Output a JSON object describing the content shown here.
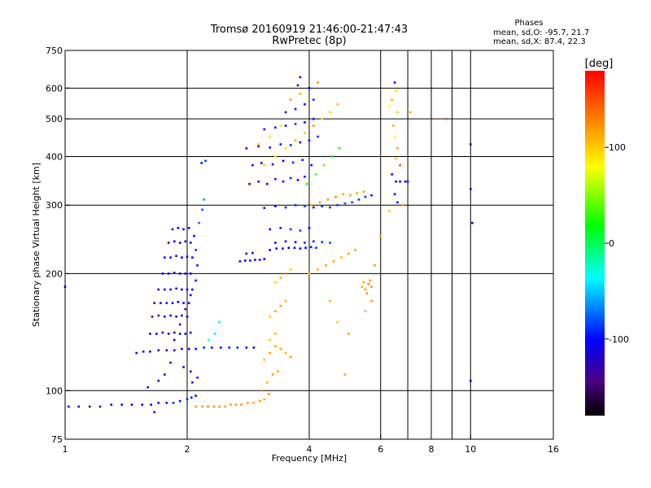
{
  "chart_data": {
    "type": "scatter",
    "title": "Tromsø 20160919 21:46:00-21:47:43",
    "subtitle": "RwPretec (8p)",
    "xlabel": "Frequency [MHz]",
    "ylabel": "Stationary phase Virtual Height [km]",
    "x_scale": "log",
    "y_scale": "log",
    "xlim": [
      1,
      16
    ],
    "ylim": [
      75,
      750
    ],
    "x_ticks": [
      1,
      2,
      4,
      6,
      8,
      10,
      16
    ],
    "y_ticks": [
      75,
      100,
      200,
      300,
      400,
      500,
      600,
      750
    ],
    "grid_x": [
      2,
      4,
      6,
      7,
      8,
      9,
      10
    ],
    "grid_y": [
      100,
      200,
      300,
      400,
      500,
      600
    ],
    "stats": {
      "header": "Phases",
      "line_o": "mean, sd,O: -95.7, 21.7",
      "line_x": "mean, sd,X:  87.4, 22.3"
    },
    "colorbar": {
      "label": "[deg]",
      "ticks": [
        100,
        0,
        -100
      ],
      "range": [
        -180,
        180
      ]
    },
    "points": [
      [
        1.0,
        185,
        -105
      ],
      [
        1.02,
        91,
        -115
      ],
      [
        1.08,
        91,
        -115
      ],
      [
        1.15,
        91,
        -120
      ],
      [
        1.22,
        91,
        -118
      ],
      [
        1.3,
        92,
        -115
      ],
      [
        1.38,
        92,
        -118
      ],
      [
        1.46,
        92,
        -112
      ],
      [
        1.55,
        92,
        -120
      ],
      [
        1.63,
        92,
        -110
      ],
      [
        1.7,
        93,
        -100
      ],
      [
        1.78,
        93,
        -105
      ],
      [
        1.85,
        93,
        -90
      ],
      [
        1.92,
        94,
        -100
      ],
      [
        2.0,
        95,
        -95
      ],
      [
        2.05,
        96,
        -110
      ],
      [
        2.1,
        97,
        -100
      ],
      [
        1.66,
        88,
        -110
      ],
      [
        1.6,
        102,
        -130
      ],
      [
        2.1,
        91,
        118
      ],
      [
        2.18,
        91,
        120
      ],
      [
        2.25,
        91,
        125
      ],
      [
        2.33,
        91,
        122
      ],
      [
        2.4,
        91,
        120
      ],
      [
        2.48,
        91,
        115
      ],
      [
        2.56,
        92,
        118
      ],
      [
        2.64,
        92,
        120
      ],
      [
        2.72,
        92,
        124
      ],
      [
        2.82,
        93,
        118
      ],
      [
        2.92,
        93,
        115
      ],
      [
        3.02,
        94,
        120
      ],
      [
        3.1,
        95,
        112
      ],
      [
        3.18,
        98,
        122
      ],
      [
        1.5,
        125,
        -125
      ],
      [
        1.56,
        126,
        -120
      ],
      [
        1.62,
        126,
        -118
      ],
      [
        1.7,
        127,
        -115
      ],
      [
        1.78,
        127,
        -120
      ],
      [
        1.86,
        127,
        -112
      ],
      [
        1.94,
        128,
        -118
      ],
      [
        2.02,
        128,
        -110
      ],
      [
        2.1,
        128,
        -100
      ],
      [
        2.2,
        129,
        -90
      ],
      [
        2.3,
        129,
        -100
      ],
      [
        2.42,
        129,
        -105
      ],
      [
        2.54,
        129,
        -95
      ],
      [
        2.66,
        129,
        -90
      ],
      [
        2.8,
        129,
        -100
      ],
      [
        2.92,
        129,
        -105
      ],
      [
        1.62,
        140,
        -120
      ],
      [
        1.68,
        140,
        -115
      ],
      [
        1.74,
        141,
        -118
      ],
      [
        1.8,
        140,
        -110
      ],
      [
        1.86,
        141,
        -120
      ],
      [
        1.92,
        140,
        -112
      ],
      [
        1.98,
        140,
        -105
      ],
      [
        2.04,
        141,
        -110
      ],
      [
        1.64,
        155,
        -115
      ],
      [
        1.7,
        156,
        -120
      ],
      [
        1.76,
        155,
        -118
      ],
      [
        1.82,
        156,
        -110
      ],
      [
        1.88,
        155,
        -115
      ],
      [
        1.94,
        156,
        -112
      ],
      [
        2.0,
        155,
        -105
      ],
      [
        1.66,
        168,
        -120
      ],
      [
        1.72,
        168,
        -118
      ],
      [
        1.78,
        168,
        -112
      ],
      [
        1.84,
        168,
        -118
      ],
      [
        1.9,
        169,
        -110
      ],
      [
        1.96,
        168,
        -108
      ],
      [
        2.02,
        168,
        -100
      ],
      [
        1.7,
        182,
        -118
      ],
      [
        1.76,
        182,
        -115
      ],
      [
        1.82,
        182,
        -110
      ],
      [
        1.88,
        183,
        -114
      ],
      [
        1.94,
        182,
        -106
      ],
      [
        2.0,
        182,
        -112
      ],
      [
        2.06,
        182,
        -98
      ],
      [
        1.74,
        200,
        -118
      ],
      [
        1.8,
        200,
        -112
      ],
      [
        1.86,
        201,
        -115
      ],
      [
        1.92,
        200,
        -108
      ],
      [
        1.98,
        200,
        -110
      ],
      [
        2.04,
        200,
        -104
      ],
      [
        1.76,
        220,
        -120
      ],
      [
        1.82,
        220,
        -114
      ],
      [
        1.88,
        222,
        -118
      ],
      [
        1.94,
        220,
        -108
      ],
      [
        2.0,
        221,
        -112
      ],
      [
        2.06,
        220,
        -100
      ],
      [
        1.8,
        240,
        -116
      ],
      [
        1.86,
        242,
        -112
      ],
      [
        1.92,
        240,
        -118
      ],
      [
        1.98,
        242,
        -108
      ],
      [
        2.04,
        240,
        -106
      ],
      [
        1.84,
        260,
        -118
      ],
      [
        1.9,
        262,
        -112
      ],
      [
        1.96,
        260,
        -110
      ],
      [
        2.02,
        262,
        -104
      ],
      [
        1.86,
        135,
        -120
      ],
      [
        1.92,
        148,
        -118
      ],
      [
        1.98,
        162,
        -112
      ],
      [
        2.04,
        176,
        -108
      ],
      [
        2.1,
        192,
        -100
      ],
      [
        2.12,
        210,
        -95
      ],
      [
        2.1,
        230,
        -90
      ],
      [
        2.08,
        250,
        -98
      ],
      [
        2.14,
        270,
        -75
      ],
      [
        2.18,
        292,
        -80
      ],
      [
        2.2,
        310,
        -60
      ],
      [
        2.22,
        390,
        -85
      ],
      [
        2.17,
        385,
        -95
      ],
      [
        2.06,
        105,
        -100
      ],
      [
        2.12,
        108,
        -95
      ],
      [
        2.04,
        112,
        -110
      ],
      [
        1.96,
        115,
        -115
      ],
      [
        1.82,
        118,
        -120
      ],
      [
        1.76,
        110,
        -118
      ],
      [
        1.7,
        106,
        -110
      ],
      [
        2.26,
        135,
        -30
      ],
      [
        2.34,
        140,
        -40
      ],
      [
        2.4,
        150,
        -20
      ],
      [
        2.7,
        215,
        -112
      ],
      [
        2.78,
        216,
        -115
      ],
      [
        2.86,
        216,
        -110
      ],
      [
        2.94,
        217,
        -118
      ],
      [
        3.02,
        217,
        -112
      ],
      [
        3.1,
        218,
        -108
      ],
      [
        2.8,
        225,
        -110
      ],
      [
        2.9,
        226,
        -112
      ],
      [
        3.2,
        230,
        -110
      ],
      [
        3.32,
        232,
        -115
      ],
      [
        3.44,
        232,
        -108
      ],
      [
        3.56,
        233,
        -112
      ],
      [
        3.68,
        233,
        -105
      ],
      [
        3.8,
        232,
        -110
      ],
      [
        3.92,
        233,
        -100
      ],
      [
        4.04,
        234,
        -95
      ],
      [
        4.16,
        233,
        -90
      ],
      [
        3.3,
        240,
        -105
      ],
      [
        3.5,
        242,
        -100
      ],
      [
        3.7,
        241,
        -108
      ],
      [
        3.9,
        240,
        -95
      ],
      [
        4.1,
        242,
        -90
      ],
      [
        4.3,
        241,
        -85
      ],
      [
        4.5,
        240,
        -80
      ],
      [
        3.2,
        260,
        -110
      ],
      [
        3.4,
        262,
        -95
      ],
      [
        3.6,
        260,
        -90
      ],
      [
        3.8,
        258,
        -85
      ],
      [
        4.0,
        262,
        -100
      ],
      [
        3.1,
        295,
        -110
      ],
      [
        3.3,
        298,
        -105
      ],
      [
        3.5,
        296,
        -95
      ],
      [
        3.7,
        300,
        -90
      ],
      [
        3.9,
        298,
        -85
      ],
      [
        4.1,
        296,
        -100
      ],
      [
        4.3,
        298,
        -95
      ],
      [
        4.5,
        296,
        -90
      ],
      [
        4.7,
        300,
        -88
      ],
      [
        4.9,
        303,
        -80
      ],
      [
        5.1,
        305,
        -85
      ],
      [
        5.3,
        310,
        -90
      ],
      [
        5.5,
        315,
        -95
      ],
      [
        5.7,
        318,
        -100
      ],
      [
        2.85,
        340,
        -110
      ],
      [
        3.0,
        345,
        -105
      ],
      [
        3.15,
        340,
        -100
      ],
      [
        3.3,
        350,
        -95
      ],
      [
        3.45,
        345,
        -108
      ],
      [
        3.6,
        352,
        -90
      ],
      [
        3.75,
        348,
        -100
      ],
      [
        3.9,
        355,
        -95
      ],
      [
        2.9,
        380,
        -110
      ],
      [
        3.05,
        385,
        -95
      ],
      [
        3.25,
        382,
        -100
      ],
      [
        3.45,
        390,
        -105
      ],
      [
        3.65,
        386,
        -90
      ],
      [
        3.85,
        392,
        -100
      ],
      [
        4.05,
        380,
        -95
      ],
      [
        2.8,
        420,
        -100
      ],
      [
        3.0,
        425,
        -110
      ],
      [
        3.2,
        422,
        -95
      ],
      [
        3.4,
        430,
        -100
      ],
      [
        3.6,
        428,
        -90
      ],
      [
        3.8,
        435,
        -105
      ],
      [
        4.0,
        440,
        -95
      ],
      [
        4.2,
        450,
        -90
      ],
      [
        3.1,
        470,
        -105
      ],
      [
        3.3,
        475,
        -95
      ],
      [
        3.5,
        480,
        -100
      ],
      [
        3.7,
        485,
        -90
      ],
      [
        3.9,
        490,
        -100
      ],
      [
        4.1,
        500,
        -95
      ],
      [
        3.5,
        520,
        -100
      ],
      [
        3.7,
        530,
        -95
      ],
      [
        3.9,
        545,
        -100
      ],
      [
        4.1,
        560,
        -90
      ],
      [
        4.0,
        600,
        -100
      ],
      [
        3.8,
        640,
        -110
      ],
      [
        3.75,
        610,
        -100
      ],
      [
        3.1,
        380,
        60
      ],
      [
        3.3,
        400,
        80
      ],
      [
        3.5,
        420,
        95
      ],
      [
        3.7,
        440,
        110
      ],
      [
        3.9,
        460,
        100
      ],
      [
        4.1,
        480,
        120
      ],
      [
        4.3,
        500,
        90
      ],
      [
        4.5,
        520,
        100
      ],
      [
        4.7,
        545,
        110
      ],
      [
        3.6,
        560,
        120
      ],
      [
        3.8,
        580,
        110
      ],
      [
        4.2,
        620,
        125
      ],
      [
        3.4,
        480,
        70
      ],
      [
        3.2,
        450,
        95
      ],
      [
        3.0,
        430,
        110
      ],
      [
        3.95,
        340,
        20
      ],
      [
        4.15,
        360,
        30
      ],
      [
        4.35,
        380,
        40
      ],
      [
        4.55,
        400,
        10
      ],
      [
        4.75,
        420,
        20
      ],
      [
        4.05,
        300,
        110
      ],
      [
        4.25,
        305,
        120
      ],
      [
        4.45,
        310,
        118
      ],
      [
        4.65,
        315,
        125
      ],
      [
        4.85,
        320,
        110
      ],
      [
        5.05,
        318,
        120
      ],
      [
        5.25,
        322,
        115
      ],
      [
        5.45,
        325,
        118
      ],
      [
        4.0,
        200,
        100
      ],
      [
        4.2,
        205,
        110
      ],
      [
        4.4,
        210,
        120
      ],
      [
        4.6,
        215,
        115
      ],
      [
        4.8,
        220,
        110
      ],
      [
        5.0,
        225,
        120
      ],
      [
        5.2,
        230,
        118
      ],
      [
        5.4,
        185,
        115
      ],
      [
        5.5,
        182,
        120
      ],
      [
        5.6,
        188,
        125
      ],
      [
        5.7,
        185,
        118
      ],
      [
        5.55,
        178,
        122
      ],
      [
        5.65,
        192,
        120
      ],
      [
        5.45,
        190,
        118
      ],
      [
        3.1,
        120,
        110
      ],
      [
        3.2,
        125,
        120
      ],
      [
        3.3,
        130,
        118
      ],
      [
        3.4,
        128,
        115
      ],
      [
        3.5,
        125,
        110
      ],
      [
        3.6,
        122,
        120
      ],
      [
        3.2,
        135,
        100
      ],
      [
        3.3,
        140,
        110
      ],
      [
        3.05,
        100,
        120
      ],
      [
        3.15,
        105,
        110
      ],
      [
        3.25,
        110,
        118
      ],
      [
        3.35,
        112,
        115
      ],
      [
        3.2,
        155,
        100
      ],
      [
        3.3,
        160,
        115
      ],
      [
        3.4,
        165,
        118
      ],
      [
        3.5,
        170,
        110
      ],
      [
        3.3,
        190,
        100
      ],
      [
        3.4,
        195,
        110
      ],
      [
        3.5,
        200,
        120
      ],
      [
        3.6,
        205,
        100
      ],
      [
        6.5,
        620,
        -110
      ],
      [
        6.55,
        590,
        70
      ],
      [
        6.4,
        560,
        110
      ],
      [
        6.3,
        540,
        80
      ],
      [
        6.6,
        520,
        100
      ],
      [
        6.45,
        480,
        110
      ],
      [
        6.5,
        450,
        80
      ],
      [
        6.6,
        420,
        120
      ],
      [
        6.55,
        395,
        100
      ],
      [
        6.7,
        380,
        150
      ],
      [
        6.4,
        360,
        -110
      ],
      [
        6.55,
        345,
        -115
      ],
      [
        6.7,
        345,
        -100
      ],
      [
        6.9,
        345,
        -110
      ],
      [
        7.0,
        345,
        -105
      ],
      [
        6.5,
        320,
        -100
      ],
      [
        6.6,
        305,
        -95
      ],
      [
        6.8,
        300,
        110
      ],
      [
        6.3,
        290,
        100
      ],
      [
        7.1,
        520,
        115
      ],
      [
        8.7,
        500,
        150
      ],
      [
        10.0,
        430,
        -140
      ],
      [
        10.0,
        330,
        -130
      ],
      [
        10.1,
        270,
        -110
      ],
      [
        10.0,
        106,
        -110
      ],
      [
        6.0,
        250,
        110
      ],
      [
        5.8,
        210,
        118
      ],
      [
        5.7,
        170,
        120
      ],
      [
        5.5,
        160,
        110
      ],
      [
        4.9,
        110,
        115
      ],
      [
        4.7,
        150,
        100
      ],
      [
        4.5,
        170,
        110
      ],
      [
        5.0,
        140,
        120
      ]
    ]
  }
}
